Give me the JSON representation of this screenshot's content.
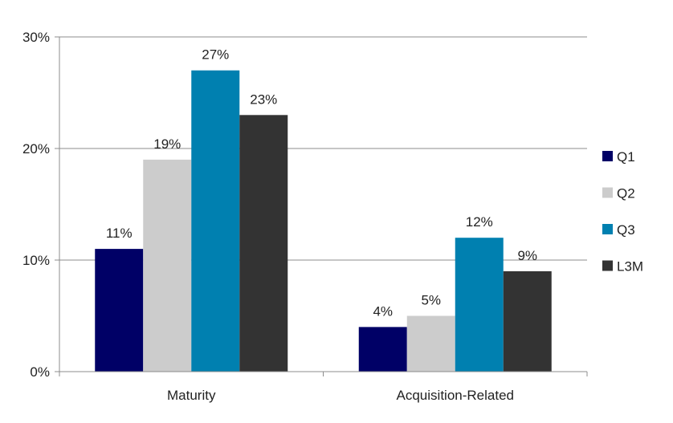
{
  "chart_data": {
    "type": "bar",
    "categories": [
      "Maturity",
      "Acquisition-Related"
    ],
    "series": [
      {
        "name": "Q1",
        "values": [
          11,
          4
        ],
        "color": "#000066"
      },
      {
        "name": "Q2",
        "values": [
          19,
          5
        ],
        "color": "#cccccc"
      },
      {
        "name": "Q3",
        "values": [
          27,
          12
        ],
        "color": "#0080b0"
      },
      {
        "name": "L3M",
        "values": [
          23,
          9
        ],
        "color": "#333333"
      }
    ],
    "value_suffix": "%",
    "ylim": [
      0,
      30
    ],
    "yticks": [
      0,
      10,
      20,
      30
    ],
    "ytick_labels": [
      "0%",
      "10%",
      "20%",
      "30%"
    ],
    "grid": true,
    "legend_position": "right",
    "title": "",
    "xlabel": "",
    "ylabel": ""
  }
}
